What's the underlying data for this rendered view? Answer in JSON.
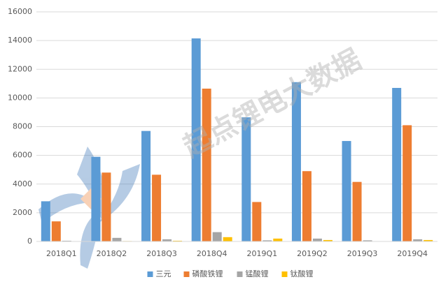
{
  "chart_data": {
    "type": "bar",
    "watermark": "起点锂电大数据",
    "categories": [
      "2018Q1",
      "2018Q2",
      "2018Q3",
      "2018Q4",
      "2019Q1",
      "2019Q2",
      "2019Q3",
      "2019Q4"
    ],
    "series": [
      {
        "name": "三元",
        "color": "#5b9bd5",
        "values": [
          2800,
          5900,
          7700,
          14150,
          8650,
          11100,
          7000,
          10700
        ]
      },
      {
        "name": "磷酸铁锂",
        "color": "#ed7d31",
        "values": [
          1400,
          4800,
          4650,
          10650,
          2750,
          4900,
          4150,
          8100
        ]
      },
      {
        "name": "锰酸锂",
        "color": "#a5a5a5",
        "values": [
          50,
          250,
          150,
          650,
          80,
          200,
          80,
          150
        ]
      },
      {
        "name": "钛酸锂",
        "color": "#ffc000",
        "values": [
          20,
          30,
          50,
          300,
          200,
          100,
          20,
          100
        ]
      }
    ],
    "ylim": [
      0,
      16000
    ],
    "yticks": [
      0,
      2000,
      4000,
      6000,
      8000,
      10000,
      12000,
      14000,
      16000
    ],
    "grid": true,
    "legend": "bottom"
  }
}
